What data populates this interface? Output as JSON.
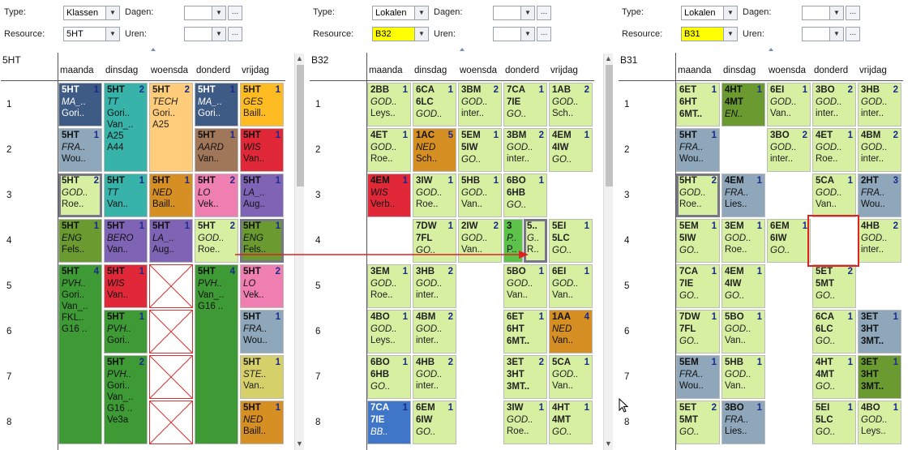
{
  "labels": {
    "type": "Type:",
    "resource": "Resource:",
    "dagen": "Dagen:",
    "uren": "Uren:",
    "ellipsis": "..."
  },
  "days": [
    "maanda",
    "dinsdag",
    "woensda",
    "donderd",
    "vrijdag"
  ],
  "hours": [
    "1",
    "2",
    "3",
    "4",
    "5",
    "6",
    "7",
    "8"
  ],
  "colors": {
    "green": "#d6efa0",
    "navy": "#3e5b85",
    "teal": "#37b3aa",
    "peach": "#ffcc7a",
    "amber": "#ffbb22",
    "grey": "#8fa7ba",
    "red": "#e02838",
    "brown": "#a1775a",
    "olive": "#9ab14a",
    "ochre": "#d68f22",
    "pink": "#ef7fb0",
    "purple": "#7f64b6",
    "dkgreen": "#3e9a34",
    "forest": "#6a9a30",
    "lime": "#5cc24a",
    "blue": "#3f76c7",
    "yellowish": "#d6d06a"
  },
  "panels": [
    {
      "type": "Klassen",
      "resource": "5HT",
      "title": "5HT",
      "resource_yellow": false
    },
    {
      "type": "Lokalen",
      "resource": "B32",
      "title": "B32",
      "resource_yellow": true
    },
    {
      "type": "Lokalen",
      "resource": "B31",
      "title": "B31",
      "resource_yellow": true
    }
  ],
  "cells": [
    {
      "p": 0,
      "d": 0,
      "h": 0,
      "span": 1,
      "bg": "navy",
      "dark": true,
      "l1": "5HT",
      "num": "1",
      "lines": [
        "MA_..",
        "Gori.."
      ]
    },
    {
      "p": 0,
      "d": 1,
      "h": 0,
      "span": 2,
      "bg": "teal",
      "l1": "5HT",
      "num": "2",
      "lines": [
        "TT",
        "Gori..",
        "Van_..",
        "A25",
        "A44"
      ]
    },
    {
      "p": 0,
      "d": 2,
      "h": 0,
      "span": 2,
      "bg": "peach",
      "l1": "5HT",
      "num": "2",
      "lines": [
        "TECH",
        "Gori..",
        "A25"
      ]
    },
    {
      "p": 0,
      "d": 3,
      "h": 0,
      "span": 1,
      "bg": "navy",
      "dark": true,
      "l1": "5HT",
      "num": "1",
      "lines": [
        "MA_..",
        "Gori.."
      ]
    },
    {
      "p": 0,
      "d": 4,
      "h": 0,
      "span": 1,
      "bg": "amber",
      "l1": "5HT",
      "num": "1",
      "lines": [
        "GES",
        "Baill.."
      ]
    },
    {
      "p": 0,
      "d": 0,
      "h": 1,
      "span": 1,
      "bg": "grey",
      "l1": "5HT",
      "num": "1",
      "lines": [
        "FRA..",
        "Wou.."
      ]
    },
    {
      "p": 0,
      "d": 3,
      "h": 1,
      "span": 1,
      "bg": "brown",
      "l1": "5HT",
      "num": "1",
      "lines": [
        "AARD",
        "Van.."
      ]
    },
    {
      "p": 0,
      "d": 4,
      "h": 1,
      "span": 1,
      "bg": "red",
      "l1": "5HT",
      "num": "1",
      "lines": [
        "WIS",
        "Van.."
      ]
    },
    {
      "p": 0,
      "d": 0,
      "h": 2,
      "span": 1,
      "bg": "green",
      "sel": true,
      "l1": "5HT",
      "num": "2",
      "lines": [
        "GOD..",
        "Roe.."
      ]
    },
    {
      "p": 0,
      "d": 1,
      "h": 2,
      "span": 1,
      "bg": "teal",
      "l1": "5HT",
      "num": "1",
      "lines": [
        "TT",
        "Van.."
      ]
    },
    {
      "p": 0,
      "d": 2,
      "h": 2,
      "span": 1,
      "bg": "ochre",
      "l1": "5HT",
      "num": "1",
      "lines": [
        "NED",
        "Baill.."
      ]
    },
    {
      "p": 0,
      "d": 3,
      "h": 2,
      "span": 1,
      "bg": "pink",
      "l1": "5HT",
      "num": "2",
      "lines": [
        "LO",
        "Vek.."
      ]
    },
    {
      "p": 0,
      "d": 4,
      "h": 2,
      "span": 1,
      "bg": "purple",
      "l1": "5HT",
      "num": "1",
      "lines": [
        "LA_..",
        "Aug.."
      ]
    },
    {
      "p": 0,
      "d": 0,
      "h": 3,
      "span": 1,
      "bg": "forest",
      "l1": "5HT",
      "num": "1",
      "lines": [
        "ENG",
        "Fels.."
      ]
    },
    {
      "p": 0,
      "d": 1,
      "h": 3,
      "span": 1,
      "bg": "purple",
      "l1": "5HT",
      "num": "1",
      "lines": [
        "BERO",
        "Van.."
      ]
    },
    {
      "p": 0,
      "d": 2,
      "h": 3,
      "span": 1,
      "bg": "purple",
      "l1": "5HT",
      "num": "1",
      "lines": [
        "LA_..",
        "Aug.."
      ]
    },
    {
      "p": 0,
      "d": 3,
      "h": 3,
      "span": 1,
      "bg": "green",
      "l1": "5HT",
      "num": "2",
      "lines": [
        "GOD..",
        "Roe.."
      ]
    },
    {
      "p": 0,
      "d": 4,
      "h": 3,
      "span": 1,
      "bg": "forest",
      "sel": true,
      "l1": "5HT",
      "num": "1",
      "lines": [
        "ENG",
        "Fels.."
      ]
    },
    {
      "p": 0,
      "d": 0,
      "h": 4,
      "span": 4,
      "bg": "dkgreen",
      "l1": "5HT",
      "num": "4",
      "lines": [
        "PVH..",
        "Gori..",
        "Van_..",
        "FKL..",
        "G16 .."
      ]
    },
    {
      "p": 0,
      "d": 1,
      "h": 4,
      "span": 1,
      "bg": "red",
      "l1": "5HT",
      "num": "1",
      "lines": [
        "WIS",
        "Van.."
      ]
    },
    {
      "p": 0,
      "d": 3,
      "h": 4,
      "span": 4,
      "bg": "dkgreen",
      "l1": "5HT",
      "num": "4",
      "lines": [
        "PVH..",
        "Van_..",
        "G16 .."
      ]
    },
    {
      "p": 0,
      "d": 4,
      "h": 4,
      "span": 1,
      "bg": "pink",
      "l1": "5HT",
      "num": "2",
      "lines": [
        "LO",
        "Vek.."
      ]
    },
    {
      "p": 0,
      "d": 1,
      "h": 5,
      "span": 1,
      "bg": "dkgreen",
      "l1": "5HT",
      "num": "1",
      "lines": [
        "PVH..",
        "Gori.."
      ]
    },
    {
      "p": 0,
      "d": 4,
      "h": 5,
      "span": 1,
      "bg": "grey",
      "l1": "5HT",
      "num": "1",
      "lines": [
        "FRA..",
        "Wou.."
      ]
    },
    {
      "p": 0,
      "d": 1,
      "h": 6,
      "span": 2,
      "bg": "dkgreen",
      "l1": "5HT",
      "num": "2",
      "lines": [
        "PVH..",
        "Gori..",
        "Van_..",
        "G16 ..",
        "Ve3a"
      ]
    },
    {
      "p": 0,
      "d": 4,
      "h": 6,
      "span": 1,
      "bg": "yellowish",
      "l1": "5HT",
      "num": "1",
      "lines": [
        "STE..",
        "Van.."
      ]
    },
    {
      "p": 0,
      "d": 4,
      "h": 7,
      "span": 1,
      "bg": "ochre",
      "l1": "5HT",
      "num": "1",
      "lines": [
        "NED",
        "Baill.."
      ]
    },
    {
      "p": 1,
      "d": 0,
      "h": 0,
      "span": 1,
      "bg": "green",
      "l1": "2BB",
      "num": "1",
      "lines": [
        "GOD..",
        "Leys.."
      ]
    },
    {
      "p": 1,
      "d": 1,
      "h": 0,
      "span": 1,
      "bg": "green",
      "l1": "6CA",
      "num": "1",
      "l2": "6LC",
      "lines": [
        "GOD.."
      ]
    },
    {
      "p": 1,
      "d": 2,
      "h": 0,
      "span": 1,
      "bg": "green",
      "l1": "3BM",
      "num": "2",
      "lines": [
        "GOD..",
        "inter.."
      ]
    },
    {
      "p": 1,
      "d": 3,
      "h": 0,
      "span": 1,
      "bg": "green",
      "l1": "7CA",
      "num": "1",
      "l2": "7IE",
      "lines": [
        "GO.."
      ]
    },
    {
      "p": 1,
      "d": 4,
      "h": 0,
      "span": 1,
      "bg": "green",
      "l1": "1AB",
      "num": "2",
      "lines": [
        "GOD..",
        "Sch.."
      ]
    },
    {
      "p": 1,
      "d": 0,
      "h": 1,
      "span": 1,
      "bg": "green",
      "l1": "4ET",
      "num": "1",
      "lines": [
        "GOD..",
        "Roe.."
      ]
    },
    {
      "p": 1,
      "d": 1,
      "h": 1,
      "span": 1,
      "bg": "ochre",
      "l1": "1AC",
      "num": "5",
      "lines": [
        "NED",
        "Sch.."
      ]
    },
    {
      "p": 1,
      "d": 2,
      "h": 1,
      "span": 1,
      "bg": "green",
      "l1": "5EM",
      "num": "1",
      "l2": "5IW",
      "lines": [
        "GO.."
      ]
    },
    {
      "p": 1,
      "d": 3,
      "h": 1,
      "span": 1,
      "bg": "green",
      "l1": "3BM",
      "num": "2",
      "lines": [
        "GOD..",
        "inter.."
      ]
    },
    {
      "p": 1,
      "d": 4,
      "h": 1,
      "span": 1,
      "bg": "green",
      "l1": "4EM",
      "num": "1",
      "l2": "4IW",
      "lines": [
        "GO.."
      ]
    },
    {
      "p": 1,
      "d": 0,
      "h": 2,
      "span": 1,
      "bg": "red",
      "l1": "4EM",
      "num": "1",
      "lines": [
        "WIS",
        "Verb.."
      ]
    },
    {
      "p": 1,
      "d": 1,
      "h": 2,
      "span": 1,
      "bg": "green",
      "l1": "3IW",
      "num": "1",
      "lines": [
        "GOD..",
        "Roe.."
      ]
    },
    {
      "p": 1,
      "d": 2,
      "h": 2,
      "span": 1,
      "bg": "green",
      "l1": "5HB",
      "num": "1",
      "lines": [
        "GOD..",
        "Van.."
      ]
    },
    {
      "p": 1,
      "d": 3,
      "h": 2,
      "span": 1,
      "bg": "green",
      "l1": "6BO",
      "num": "1",
      "l2": "6HB",
      "lines": [
        "GO.."
      ]
    },
    {
      "p": 1,
      "d": 1,
      "h": 3,
      "span": 1,
      "bg": "green",
      "l1": "7DW",
      "num": "1",
      "l2": "7FL",
      "lines": [
        "GO.."
      ]
    },
    {
      "p": 1,
      "d": 2,
      "h": 3,
      "span": 1,
      "bg": "green",
      "l1": "2IW",
      "num": "2",
      "lines": [
        "GOD..",
        "Van.."
      ]
    },
    {
      "p": 1,
      "d": 3,
      "h": 3,
      "span": 1,
      "bg": "lime",
      "half": "l",
      "l1": "3",
      "num": "",
      "lines": [
        "P..",
        "P.."
      ]
    },
    {
      "p": 1,
      "d": 3,
      "h": 3,
      "span": 1,
      "bg": "green",
      "half": "r",
      "sel": true,
      "l1": "5..",
      "num": "",
      "lines": [
        "G..",
        "R.."
      ]
    },
    {
      "p": 1,
      "d": 4,
      "h": 3,
      "span": 1,
      "bg": "green",
      "l1": "5EI",
      "num": "1",
      "l2": "5LC",
      "lines": [
        "GO.."
      ]
    },
    {
      "p": 1,
      "d": 0,
      "h": 4,
      "span": 1,
      "bg": "green",
      "l1": "3EM",
      "num": "1",
      "lines": [
        "GOD..",
        "Roe.."
      ]
    },
    {
      "p": 1,
      "d": 1,
      "h": 4,
      "span": 1,
      "bg": "green",
      "l1": "3HB",
      "num": "2",
      "lines": [
        "GOD..",
        "inter.."
      ]
    },
    {
      "p": 1,
      "d": 3,
      "h": 4,
      "span": 1,
      "bg": "green",
      "l1": "5BO",
      "num": "1",
      "lines": [
        "GOD..",
        "Van.."
      ]
    },
    {
      "p": 1,
      "d": 4,
      "h": 4,
      "span": 1,
      "bg": "green",
      "l1": "6EI",
      "num": "1",
      "lines": [
        "GOD..",
        "Van.."
      ]
    },
    {
      "p": 1,
      "d": 0,
      "h": 5,
      "span": 1,
      "bg": "green",
      "l1": "4BO",
      "num": "1",
      "lines": [
        "GOD..",
        "Leys.."
      ]
    },
    {
      "p": 1,
      "d": 1,
      "h": 5,
      "span": 1,
      "bg": "green",
      "l1": "4BM",
      "num": "2",
      "lines": [
        "GOD..",
        "inter.."
      ]
    },
    {
      "p": 1,
      "d": 3,
      "h": 5,
      "span": 1,
      "bg": "green",
      "l1": "6ET",
      "num": "1",
      "l2": "6HT",
      "l3": "6MT..",
      "lines": []
    },
    {
      "p": 1,
      "d": 4,
      "h": 5,
      "span": 1,
      "bg": "ochre",
      "l1": "1AA",
      "num": "4",
      "lines": [
        "NED",
        "Van.."
      ]
    },
    {
      "p": 1,
      "d": 0,
      "h": 6,
      "span": 1,
      "bg": "green",
      "l1": "6BO",
      "num": "1",
      "l2": "6HB",
      "lines": [
        "GO.."
      ]
    },
    {
      "p": 1,
      "d": 1,
      "h": 6,
      "span": 1,
      "bg": "green",
      "l1": "4HB",
      "num": "2",
      "lines": [
        "GOD..",
        "inter.."
      ]
    },
    {
      "p": 1,
      "d": 3,
      "h": 6,
      "span": 1,
      "bg": "green",
      "l1": "3ET",
      "num": "2",
      "l2": "3HT",
      "l3": "3MT..",
      "lines": []
    },
    {
      "p": 1,
      "d": 4,
      "h": 6,
      "span": 1,
      "bg": "green",
      "l1": "5CA",
      "num": "1",
      "lines": [
        "GOD..",
        "Van.."
      ]
    },
    {
      "p": 1,
      "d": 0,
      "h": 7,
      "span": 1,
      "bg": "blue",
      "dark": true,
      "l1": "7CA",
      "num": "1",
      "l2": "7IE",
      "lines": [
        "BB.."
      ]
    },
    {
      "p": 1,
      "d": 1,
      "h": 7,
      "span": 1,
      "bg": "green",
      "l1": "6EM",
      "num": "1",
      "l2": "6IW",
      "lines": [
        "GO.."
      ]
    },
    {
      "p": 1,
      "d": 3,
      "h": 7,
      "span": 1,
      "bg": "green",
      "l1": "3IW",
      "num": "1",
      "lines": [
        "GOD..",
        "Roe.."
      ]
    },
    {
      "p": 1,
      "d": 4,
      "h": 7,
      "span": 1,
      "bg": "green",
      "l1": "4HT",
      "num": "1",
      "l2": "4MT",
      "lines": [
        "GO.."
      ]
    },
    {
      "p": 2,
      "d": 0,
      "h": 0,
      "span": 1,
      "bg": "green",
      "l1": "6ET",
      "num": "1",
      "l2": "6HT",
      "l3": "6MT..",
      "lines": []
    },
    {
      "p": 2,
      "d": 1,
      "h": 0,
      "span": 1,
      "bg": "forest",
      "l1": "4HT",
      "num": "1",
      "l2": "4MT",
      "lines": [
        "EN.."
      ]
    },
    {
      "p": 2,
      "d": 2,
      "h": 0,
      "span": 1,
      "bg": "green",
      "l1": "6EI",
      "num": "1",
      "lines": [
        "GOD..",
        "Van.."
      ]
    },
    {
      "p": 2,
      "d": 3,
      "h": 0,
      "span": 1,
      "bg": "green",
      "l1": "3BO",
      "num": "2",
      "lines": [
        "GOD..",
        "inter.."
      ]
    },
    {
      "p": 2,
      "d": 4,
      "h": 0,
      "span": 1,
      "bg": "green",
      "l1": "3HB",
      "num": "2",
      "lines": [
        "GOD..",
        "inter.."
      ]
    },
    {
      "p": 2,
      "d": 0,
      "h": 1,
      "span": 1,
      "bg": "grey",
      "l1": "5HT",
      "num": "1",
      "lines": [
        "FRA..",
        "Wou.."
      ]
    },
    {
      "p": 2,
      "d": 2,
      "h": 1,
      "span": 1,
      "bg": "green",
      "l1": "3BO",
      "num": "2",
      "lines": [
        "GOD..",
        "inter.."
      ]
    },
    {
      "p": 2,
      "d": 3,
      "h": 1,
      "span": 1,
      "bg": "green",
      "l1": "4ET",
      "num": "1",
      "lines": [
        "GOD..",
        "Roe.."
      ]
    },
    {
      "p": 2,
      "d": 4,
      "h": 1,
      "span": 1,
      "bg": "green",
      "l1": "4BM",
      "num": "2",
      "lines": [
        "GOD..",
        "inter.."
      ]
    },
    {
      "p": 2,
      "d": 0,
      "h": 2,
      "span": 1,
      "bg": "green",
      "sel": true,
      "l1": "5HT",
      "num": "2",
      "lines": [
        "GOD..",
        "Roe.."
      ]
    },
    {
      "p": 2,
      "d": 1,
      "h": 2,
      "span": 1,
      "bg": "grey",
      "l1": "4EM",
      "num": "1",
      "lines": [
        "FRA..",
        "Lies.."
      ]
    },
    {
      "p": 2,
      "d": 3,
      "h": 2,
      "span": 1,
      "bg": "green",
      "l1": "5CA",
      "num": "1",
      "lines": [
        "GOD..",
        "Van.."
      ]
    },
    {
      "p": 2,
      "d": 4,
      "h": 2,
      "span": 1,
      "bg": "grey",
      "l1": "2HT",
      "num": "3",
      "lines": [
        "FRA..",
        "Wou.."
      ]
    },
    {
      "p": 2,
      "d": 0,
      "h": 3,
      "span": 1,
      "bg": "green",
      "l1": "5EM",
      "num": "1",
      "l2": "5IW",
      "lines": [
        "GO.."
      ]
    },
    {
      "p": 2,
      "d": 1,
      "h": 3,
      "span": 1,
      "bg": "green",
      "l1": "3EM",
      "num": "1",
      "lines": [
        "GOD..",
        "Roe.."
      ]
    },
    {
      "p": 2,
      "d": 2,
      "h": 3,
      "span": 1,
      "bg": "green",
      "l1": "6EM",
      "num": "1",
      "l2": "6IW",
      "lines": [
        "GO.."
      ]
    },
    {
      "p": 2,
      "d": 4,
      "h": 3,
      "span": 1,
      "bg": "green",
      "l1": "4HB",
      "num": "2",
      "lines": [
        "GOD..",
        "inter.."
      ]
    },
    {
      "p": 2,
      "d": 0,
      "h": 4,
      "span": 1,
      "bg": "green",
      "l1": "7CA",
      "num": "1",
      "l2": "7IE",
      "lines": [
        "GO.."
      ]
    },
    {
      "p": 2,
      "d": 1,
      "h": 4,
      "span": 1,
      "bg": "green",
      "l1": "4EM",
      "num": "1",
      "l2": "4IW",
      "lines": [
        "GO.."
      ]
    },
    {
      "p": 2,
      "d": 3,
      "h": 4,
      "span": 1,
      "bg": "green",
      "l1": "5ET",
      "num": "2",
      "l2": "5MT",
      "lines": [
        "GO.."
      ]
    },
    {
      "p": 2,
      "d": 0,
      "h": 5,
      "span": 1,
      "bg": "green",
      "l1": "7DW",
      "num": "1",
      "l2": "7FL",
      "lines": [
        "GO.."
      ]
    },
    {
      "p": 2,
      "d": 1,
      "h": 5,
      "span": 1,
      "bg": "green",
      "l1": "5BO",
      "num": "1",
      "lines": [
        "GOD..",
        "Van.."
      ]
    },
    {
      "p": 2,
      "d": 3,
      "h": 5,
      "span": 1,
      "bg": "green",
      "l1": "6CA",
      "num": "1",
      "l2": "6LC",
      "lines": [
        "GO.."
      ]
    },
    {
      "p": 2,
      "d": 4,
      "h": 5,
      "span": 1,
      "bg": "grey",
      "l1": "3ET",
      "num": "1",
      "l2": "3HT",
      "l3": "3MT..",
      "lines": []
    },
    {
      "p": 2,
      "d": 0,
      "h": 6,
      "span": 1,
      "bg": "grey",
      "l1": "5EM",
      "num": "1",
      "lines": [
        "FRA..",
        "Wou.."
      ]
    },
    {
      "p": 2,
      "d": 1,
      "h": 6,
      "span": 1,
      "bg": "green",
      "l1": "5HB",
      "num": "1",
      "lines": [
        "GOD..",
        "Van.."
      ]
    },
    {
      "p": 2,
      "d": 3,
      "h": 6,
      "span": 1,
      "bg": "green",
      "l1": "4HT",
      "num": "1",
      "l2": "4MT",
      "lines": [
        "GO.."
      ]
    },
    {
      "p": 2,
      "d": 4,
      "h": 6,
      "span": 1,
      "bg": "forest",
      "l1": "3ET",
      "num": "1",
      "l2": "3HT",
      "l3": "3MT..",
      "lines": []
    },
    {
      "p": 2,
      "d": 0,
      "h": 7,
      "span": 1,
      "bg": "green",
      "l1": "5ET",
      "num": "2",
      "l2": "5MT",
      "lines": [
        "GO.."
      ]
    },
    {
      "p": 2,
      "d": 1,
      "h": 7,
      "span": 1,
      "bg": "grey",
      "l1": "3BO",
      "num": "1",
      "lines": [
        "FRA..",
        "Lies.."
      ]
    },
    {
      "p": 2,
      "d": 3,
      "h": 7,
      "span": 1,
      "bg": "green",
      "l1": "5EI",
      "num": "1",
      "l2": "5LC",
      "lines": [
        "GO.."
      ]
    },
    {
      "p": 2,
      "d": 4,
      "h": 7,
      "span": 1,
      "bg": "green",
      "l1": "4BO",
      "num": "1",
      "lines": [
        "GOD..",
        "Leys.."
      ]
    }
  ],
  "blocked": [
    {
      "p": 0,
      "d": 2,
      "h": 4,
      "span": 4
    }
  ]
}
